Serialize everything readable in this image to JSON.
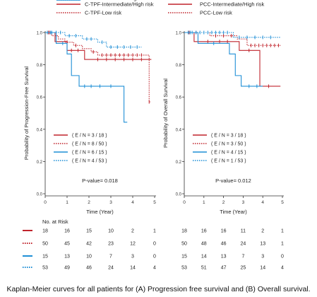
{
  "caption": "Kaplan-Meier curves for all patients for (A) Progression free survival and (B) Overall survival.",
  "chart_data": [
    {
      "type": "line",
      "subtype": "kaplan-meier",
      "xlabel": "Time (Year)",
      "ylabel": "Probability of Progression-Free Survival",
      "xlim": [
        0,
        5
      ],
      "ylim": [
        0,
        1.0
      ],
      "x_ticks": [
        "0",
        "1",
        "2",
        "3",
        "4",
        "5"
      ],
      "y_ticks": [
        "0.0",
        "0.2",
        "0.4",
        "0.6",
        "0.8",
        "1.0"
      ],
      "legend_position": "top",
      "p_value": "P-value= 0.018",
      "risk_table_title": "No. at Risk",
      "risk_times": [
        "0",
        "1",
        "2",
        "3",
        "4",
        "5"
      ],
      "series": [
        {
          "name": "C-TPF-Intermediate/High risk",
          "en": "( E / N = 3 / 18 )",
          "color": "#c0242c",
          "dash": "solid",
          "steps": [
            [
              0,
              1.0
            ],
            [
              0.45,
              0.944
            ],
            [
              1.0,
              0.889
            ],
            [
              1.8,
              0.833
            ]
          ],
          "end_x": 4.85,
          "censors": [
            [
              0.2,
              1.0
            ],
            [
              1.2,
              0.889
            ],
            [
              1.5,
              0.889
            ],
            [
              2.4,
              0.833
            ],
            [
              2.8,
              0.833
            ],
            [
              3.2,
              0.833
            ],
            [
              3.6,
              0.833
            ],
            [
              4.0,
              0.833
            ],
            [
              4.4,
              0.833
            ]
          ],
          "at_risk": [
            18,
            16,
            15,
            10,
            2,
            1
          ]
        },
        {
          "name": "C-TPF-Low risk",
          "en": "( E / N = 8 / 50 )",
          "color": "#c0242c",
          "dash": "dotted",
          "steps": [
            [
              0,
              1.0
            ],
            [
              0.3,
              0.98
            ],
            [
              0.6,
              0.96
            ],
            [
              0.9,
              0.94
            ],
            [
              1.3,
              0.92
            ],
            [
              1.7,
              0.9
            ],
            [
              2.1,
              0.88
            ],
            [
              2.4,
              0.86
            ],
            [
              4.75,
              0.57
            ]
          ],
          "end_x": 4.8,
          "censors": [
            [
              0.15,
              1.0
            ],
            [
              1.0,
              0.94
            ],
            [
              1.4,
              0.92
            ],
            [
              2.2,
              0.88
            ],
            [
              2.6,
              0.86
            ],
            [
              2.8,
              0.86
            ],
            [
              3.0,
              0.86
            ],
            [
              3.2,
              0.86
            ],
            [
              3.4,
              0.86
            ],
            [
              3.6,
              0.86
            ],
            [
              3.8,
              0.86
            ],
            [
              4.0,
              0.86
            ],
            [
              4.2,
              0.86
            ],
            [
              4.4,
              0.86
            ],
            [
              4.75,
              0.57
            ]
          ],
          "at_risk": [
            50,
            45,
            42,
            23,
            12,
            0
          ]
        },
        {
          "name": "PCC-Intermediate/High risk",
          "en": "( E / N = 6 / 15 )",
          "color": "#1f8fd6",
          "dash": "solid",
          "steps": [
            [
              0,
              1.0
            ],
            [
              0.5,
              0.933
            ],
            [
              1.0,
              0.867
            ],
            [
              1.2,
              0.733
            ],
            [
              1.55,
              0.667
            ],
            [
              3.6,
              0.444
            ]
          ],
          "end_x": 3.75,
          "censors": [
            [
              0.25,
              1.0
            ],
            [
              0.8,
              0.933
            ],
            [
              1.8,
              0.667
            ],
            [
              2.1,
              0.667
            ],
            [
              2.5,
              0.667
            ],
            [
              3.0,
              0.667
            ]
          ],
          "at_risk": [
            15,
            13,
            10,
            7,
            3,
            0
          ]
        },
        {
          "name": "PCC-Low risk",
          "en": "( E / N = 4 / 53 )",
          "color": "#1f8fd6",
          "dash": "dotted",
          "steps": [
            [
              0,
              1.0
            ],
            [
              0.9,
              0.98
            ],
            [
              1.7,
              0.96
            ],
            [
              2.4,
              0.94
            ],
            [
              2.8,
              0.91
            ]
          ],
          "end_x": 4.4,
          "censors": [
            [
              0.1,
              1.0
            ],
            [
              0.3,
              1.0
            ],
            [
              0.5,
              1.0
            ],
            [
              0.7,
              1.0
            ],
            [
              1.1,
              0.98
            ],
            [
              1.4,
              0.98
            ],
            [
              1.9,
              0.96
            ],
            [
              2.1,
              0.96
            ],
            [
              2.6,
              0.94
            ],
            [
              3.0,
              0.91
            ],
            [
              3.3,
              0.91
            ],
            [
              3.6,
              0.91
            ],
            [
              3.9,
              0.91
            ],
            [
              4.2,
              0.91
            ]
          ],
          "at_risk": [
            53,
            49,
            46,
            24,
            14,
            4
          ]
        }
      ]
    },
    {
      "type": "line",
      "subtype": "kaplan-meier",
      "xlabel": "Time (Year)",
      "ylabel": "Probability of Overall Survival",
      "xlim": [
        0,
        5
      ],
      "ylim": [
        0,
        1.0
      ],
      "x_ticks": [
        "0",
        "1",
        "2",
        "3",
        "4",
        "5"
      ],
      "y_ticks": [
        "0.0",
        "0.2",
        "0.4",
        "0.6",
        "0.8",
        "1.0"
      ],
      "legend_position": "top",
      "p_value": "P-value= 0.012",
      "risk_table_title": "",
      "risk_times": [
        "0",
        "1",
        "2",
        "3",
        "4",
        "5"
      ],
      "series": [
        {
          "name": "PCC-Intermediate/High risk",
          "en": "( E / N = 3 / 18 )",
          "color": "#c0242c",
          "dash": "solid",
          "steps": [
            [
              0,
              1.0
            ],
            [
              0.5,
              0.944
            ],
            [
              2.8,
              0.889
            ],
            [
              3.85,
              0.667
            ]
          ],
          "end_x": 4.9,
          "censors": [
            [
              0.25,
              1.0
            ],
            [
              1.2,
              0.944
            ],
            [
              1.8,
              0.944
            ],
            [
              2.2,
              0.944
            ],
            [
              3.3,
              0.889
            ],
            [
              4.3,
              0.667
            ]
          ],
          "at_risk": [
            18,
            16,
            16,
            11,
            2,
            1
          ]
        },
        {
          "name": "PCC-Low risk",
          "en": "( E / N = 3 / 50 )",
          "color": "#c0242c",
          "dash": "dotted",
          "steps": [
            [
              0,
              1.0
            ],
            [
              1.3,
              0.98
            ],
            [
              2.7,
              0.96
            ],
            [
              3.2,
              0.92
            ]
          ],
          "end_x": 4.9,
          "censors": [
            [
              0.2,
              1.0
            ],
            [
              0.6,
              1.0
            ],
            [
              1.6,
              0.98
            ],
            [
              2.0,
              0.98
            ],
            [
              2.4,
              0.98
            ],
            [
              3.4,
              0.92
            ],
            [
              3.6,
              0.92
            ],
            [
              3.8,
              0.92
            ],
            [
              4.0,
              0.92
            ],
            [
              4.2,
              0.92
            ],
            [
              4.4,
              0.92
            ],
            [
              4.6,
              0.92
            ],
            [
              4.8,
              0.92
            ]
          ],
          "at_risk": [
            50,
            48,
            46,
            24,
            13,
            1
          ]
        },
        {
          "name": "",
          "en": "( E / N = 4 / 15 )",
          "color": "#1f8fd6",
          "dash": "solid",
          "steps": [
            [
              0,
              1.0
            ],
            [
              0.7,
              0.933
            ],
            [
              2.3,
              0.867
            ],
            [
              2.6,
              0.733
            ],
            [
              2.9,
              0.667
            ]
          ],
          "end_x": 4.0,
          "censors": [
            [
              0.3,
              1.0
            ],
            [
              1.5,
              0.933
            ],
            [
              3.3,
              0.667
            ],
            [
              3.7,
              0.667
            ]
          ],
          "at_risk": [
            15,
            14,
            13,
            7,
            3,
            0
          ]
        },
        {
          "name": "",
          "en": "( E / N = 1 / 53 )",
          "color": "#1f8fd6",
          "dash": "dotted",
          "steps": [
            [
              0,
              1.0
            ],
            [
              2.5,
              0.97
            ]
          ],
          "end_x": 4.9,
          "censors": [
            [
              0.2,
              1.0
            ],
            [
              0.4,
              1.0
            ],
            [
              0.6,
              1.0
            ],
            [
              0.8,
              1.0
            ],
            [
              1.0,
              1.0
            ],
            [
              1.2,
              1.0
            ],
            [
              1.4,
              1.0
            ],
            [
              1.6,
              1.0
            ],
            [
              1.8,
              1.0
            ],
            [
              2.0,
              1.0
            ],
            [
              2.2,
              1.0
            ],
            [
              2.8,
              0.97
            ],
            [
              3.2,
              0.97
            ],
            [
              3.6,
              0.97
            ],
            [
              4.0,
              0.97
            ],
            [
              4.4,
              0.97
            ]
          ],
          "at_risk": [
            53,
            51,
            47,
            25,
            14,
            4
          ]
        }
      ]
    }
  ]
}
